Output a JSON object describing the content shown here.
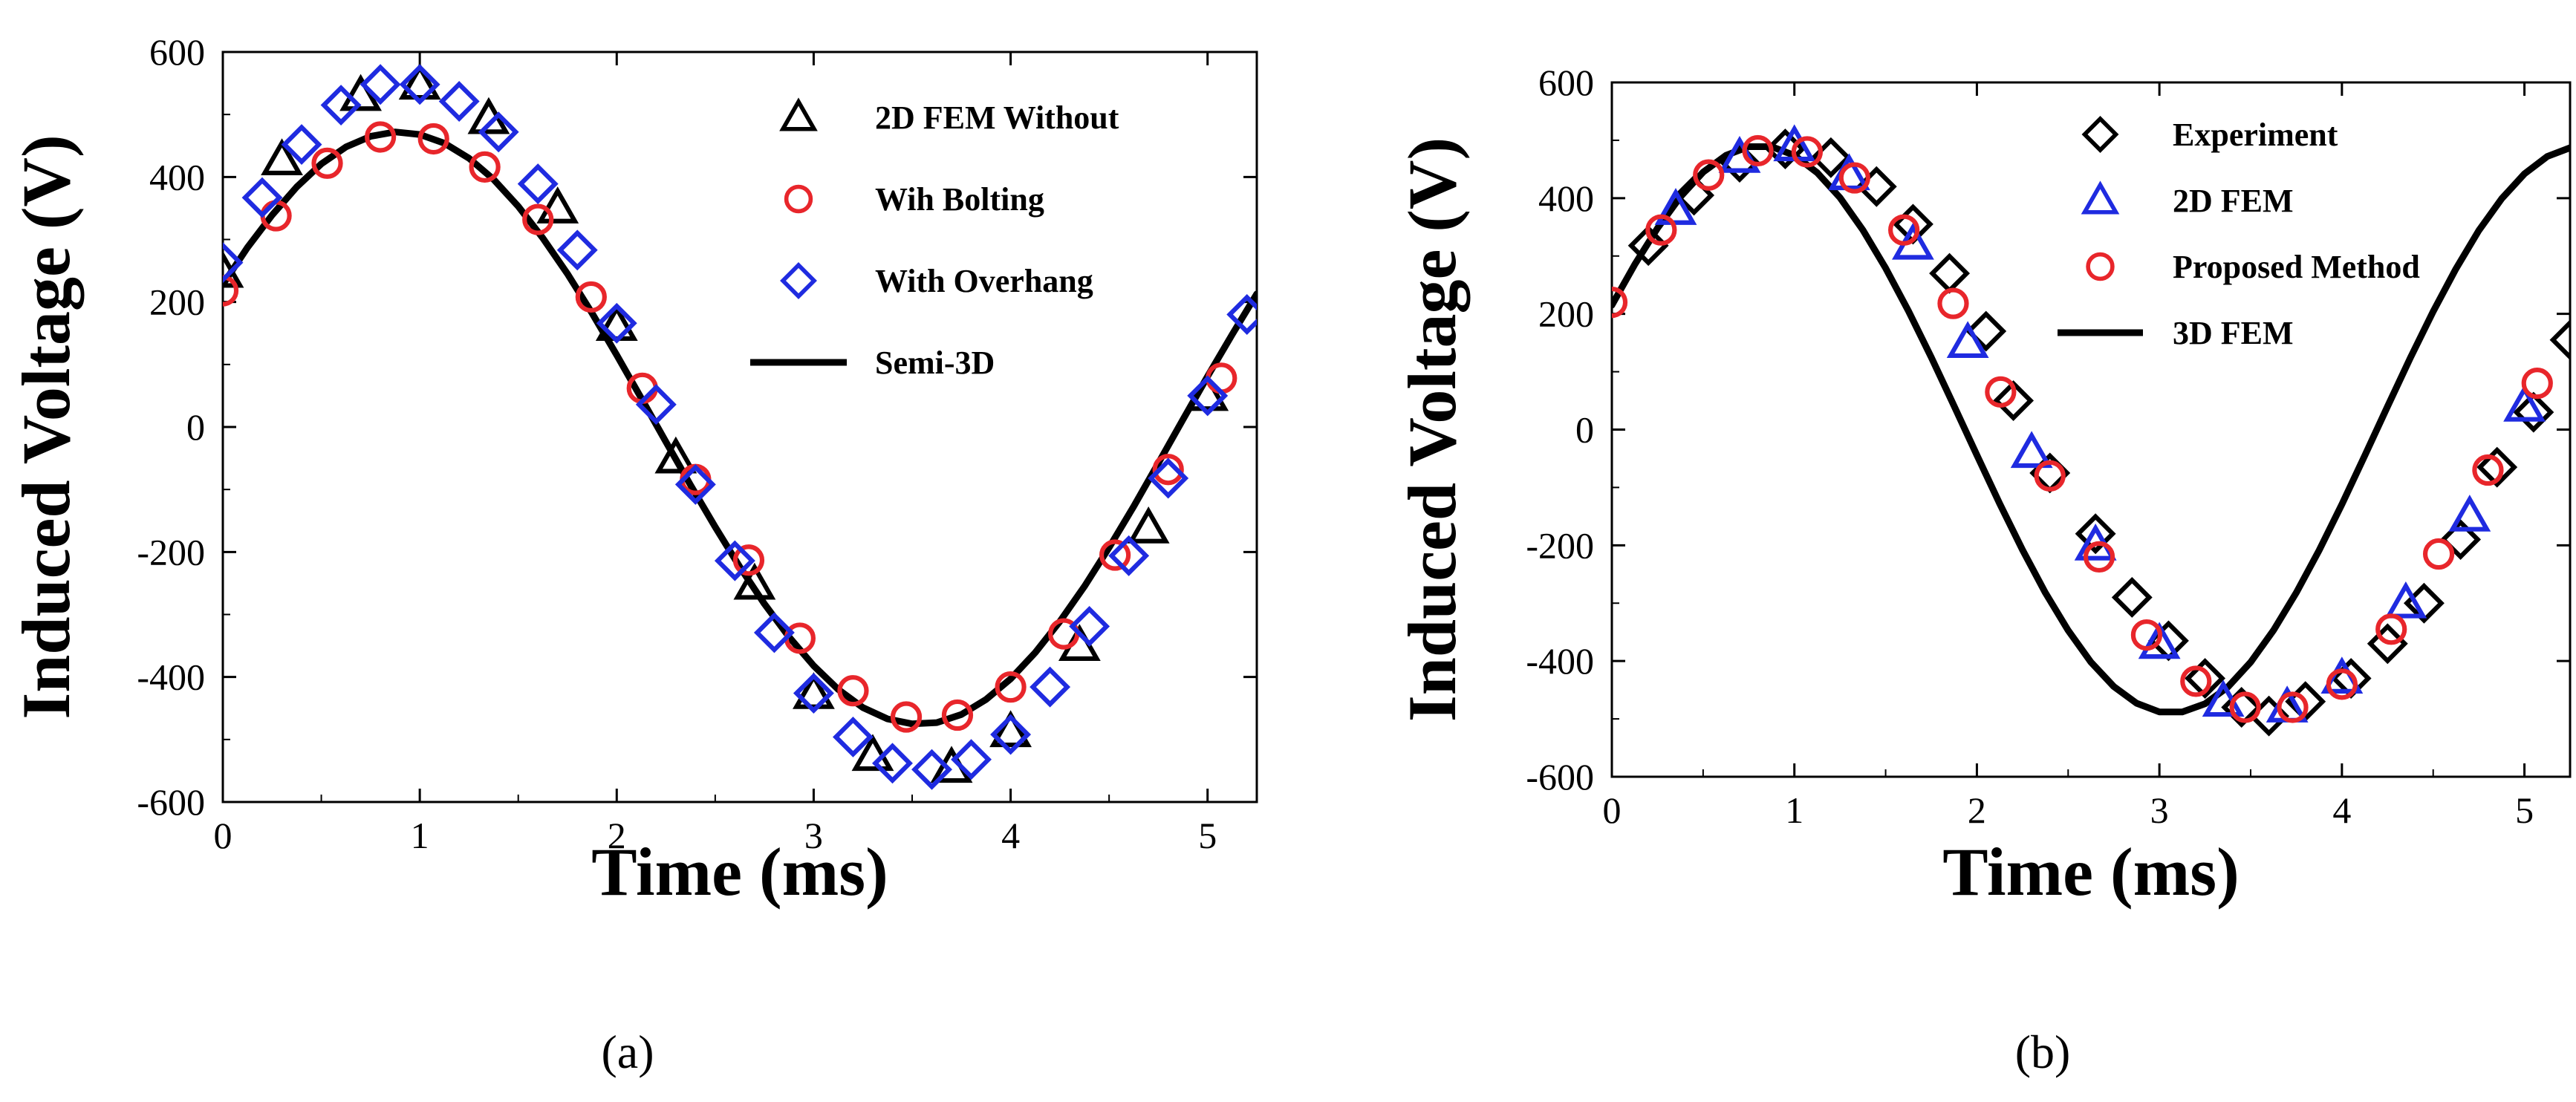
{
  "chart_data": [
    {
      "type": "line",
      "panel_label": "(a)",
      "xlabel": "Time (ms)",
      "ylabel": "Induced Voltage (V)",
      "xlim": [
        0,
        5.25
      ],
      "ylim": [
        -600,
        600
      ],
      "xticks": [
        0,
        1,
        2,
        3,
        4,
        5
      ],
      "yticks": [
        600,
        400,
        200,
        0,
        -200,
        -400,
        -600
      ],
      "xtick_labels": [
        "0",
        "1",
        "2",
        "3",
        "4",
        "5"
      ],
      "ytick_labels": [
        "600",
        "400",
        "200",
        "0",
        "-200",
        "-400",
        "-600"
      ],
      "legend_position": "top-right",
      "series": [
        {
          "name": "2D FEM Without",
          "marker": "triangle",
          "color": "#000000",
          "x": [
            0,
            0.3,
            0.7,
            1.0,
            1.35,
            1.7,
            2.0,
            2.3,
            2.7,
            3.0,
            3.3,
            3.7,
            4.0,
            4.35,
            4.7,
            5.0
          ],
          "y": [
            247,
            427,
            530,
            548,
            493,
            350,
            162,
            -50,
            -252,
            -427,
            -526,
            -545,
            -488,
            -350,
            -162,
            50
          ]
        },
        {
          "name": "Wih Bolting",
          "marker": "circle",
          "color": "#e8262b",
          "x": [
            0,
            0.27,
            0.53,
            0.8,
            1.07,
            1.33,
            1.6,
            1.87,
            2.13,
            2.4,
            2.67,
            2.93,
            3.2,
            3.47,
            3.73,
            4.0,
            4.27,
            4.53,
            4.8,
            5.07
          ],
          "y": [
            218,
            338,
            422,
            464,
            461,
            416,
            332,
            208,
            62,
            -84,
            -213,
            -338,
            -422,
            -464,
            -461,
            -416,
            -331,
            -205,
            -68,
            78
          ]
        },
        {
          "name": "With Overhang",
          "marker": "diamond",
          "color": "#1f2be0",
          "x": [
            0,
            0.2,
            0.4,
            0.6,
            0.8,
            1.0,
            1.2,
            1.4,
            1.6,
            1.8,
            2.0,
            2.2,
            2.4,
            2.6,
            2.8,
            3.0,
            3.2,
            3.4,
            3.6,
            3.8,
            4.0,
            4.2,
            4.4,
            4.6,
            4.8,
            5.0,
            5.2
          ],
          "y": [
            263,
            367,
            452,
            515,
            548,
            548,
            521,
            472,
            389,
            283,
            166,
            36,
            -92,
            -214,
            -329,
            -426,
            -496,
            -538,
            -548,
            -532,
            -492,
            -416,
            -319,
            -206,
            -82,
            50,
            180
          ]
        },
        {
          "name": "Semi-3D",
          "style": "line",
          "color": "#000000",
          "x": [
            0,
            0.125,
            0.25,
            0.375,
            0.5,
            0.625,
            0.75,
            0.875,
            1.0,
            1.125,
            1.25,
            1.375,
            1.5,
            1.625,
            1.75,
            1.875,
            2.0,
            2.125,
            2.25,
            2.375,
            2.5,
            2.625,
            2.75,
            2.875,
            3.0,
            3.125,
            3.25,
            3.375,
            3.5,
            3.625,
            3.75,
            3.875,
            4.0,
            4.125,
            4.25,
            4.375,
            4.5,
            4.625,
            4.75,
            4.875,
            5.0,
            5.125,
            5.25
          ],
          "y": [
            228,
            287,
            339,
            384,
            421,
            448,
            465,
            472,
            468,
            454,
            430,
            396,
            353,
            302,
            245,
            182,
            115,
            46,
            -24,
            -93,
            -160,
            -224,
            -283,
            -336,
            -382,
            -420,
            -449,
            -467,
            -475,
            -473,
            -460,
            -436,
            -403,
            -361,
            -311,
            -255,
            -193,
            -127,
            -58,
            12,
            81,
            148,
            213
          ]
        }
      ]
    },
    {
      "type": "line",
      "panel_label": "(b)",
      "xlabel": "Time (ms)",
      "ylabel": "Induced Voltage (V)",
      "xlim": [
        0,
        5.25
      ],
      "ylim": [
        -600,
        600
      ],
      "xticks": [
        0,
        1,
        2,
        3,
        4,
        5
      ],
      "yticks": [
        600,
        400,
        200,
        0,
        -200,
        -400,
        -600
      ],
      "xtick_labels": [
        "0",
        "1",
        "2",
        "3",
        "4",
        "5"
      ],
      "ytick_labels": [
        "600",
        "400",
        "200",
        "0",
        "-200",
        "-400",
        "-600"
      ],
      "legend_position": "top-right",
      "series": [
        {
          "name": "Experiment",
          "marker": "diamond",
          "color": "#000000",
          "x": [
            0.2,
            0.45,
            0.7,
            0.95,
            1.2,
            1.45,
            1.65,
            1.85,
            2.05,
            2.2,
            2.4,
            2.65,
            2.85,
            3.05,
            3.25,
            3.45,
            3.6,
            3.8,
            4.05,
            4.25,
            4.45,
            4.65,
            4.85,
            5.05,
            5.25
          ],
          "y": [
            318,
            405,
            462,
            485,
            470,
            420,
            355,
            270,
            170,
            50,
            -75,
            -180,
            -290,
            -365,
            -430,
            -480,
            -495,
            -470,
            -430,
            -370,
            -300,
            -190,
            -65,
            30,
            155
          ]
        },
        {
          "name": "2D FEM",
          "marker": "triangle",
          "color": "#1f2be0",
          "x": [
            0.35,
            0.7,
            1.0,
            1.3,
            1.65,
            1.95,
            2.3,
            2.65,
            3.0,
            3.35,
            3.7,
            4.0,
            4.35,
            4.7,
            5.0
          ],
          "y": [
            380,
            470,
            490,
            440,
            320,
            150,
            -40,
            -200,
            -370,
            -470,
            -480,
            -430,
            -300,
            -150,
            40
          ]
        },
        {
          "name": "Proposed Method",
          "marker": "circle",
          "color": "#e8262b",
          "x": [
            0,
            0.27,
            0.53,
            0.8,
            1.07,
            1.33,
            1.6,
            1.87,
            2.13,
            2.4,
            2.67,
            2.93,
            3.2,
            3.47,
            3.73,
            4.0,
            4.27,
            4.53,
            4.8,
            5.07
          ],
          "y": [
            220,
            345,
            440,
            482,
            480,
            435,
            345,
            218,
            65,
            -80,
            -220,
            -355,
            -435,
            -480,
            -480,
            -440,
            -345,
            -215,
            -70,
            80
          ]
        },
        {
          "name": "3D FEM",
          "style": "line",
          "color": "#000000",
          "x": [
            0,
            0.125,
            0.25,
            0.375,
            0.5,
            0.625,
            0.75,
            0.875,
            1.0,
            1.125,
            1.25,
            1.375,
            1.5,
            1.625,
            1.75,
            1.875,
            2.0,
            2.125,
            2.25,
            2.375,
            2.5,
            2.625,
            2.75,
            2.875,
            3.0,
            3.125,
            3.25,
            3.375,
            3.5,
            3.625,
            3.75,
            3.875,
            4.0,
            4.125,
            4.25,
            4.375,
            4.5,
            4.625,
            4.75,
            4.875,
            5.0,
            5.125,
            5.25
          ],
          "y": [
            215,
            285,
            348,
            402,
            445,
            474,
            489,
            489,
            474,
            444,
            401,
            345,
            279,
            205,
            125,
            41,
            -44,
            -128,
            -208,
            -282,
            -347,
            -402,
            -444,
            -473,
            -488,
            -488,
            -474,
            -445,
            -402,
            -347,
            -282,
            -209,
            -129,
            -45,
            40,
            124,
            204,
            278,
            344,
            399,
            442,
            472,
            487
          ]
        }
      ]
    }
  ]
}
